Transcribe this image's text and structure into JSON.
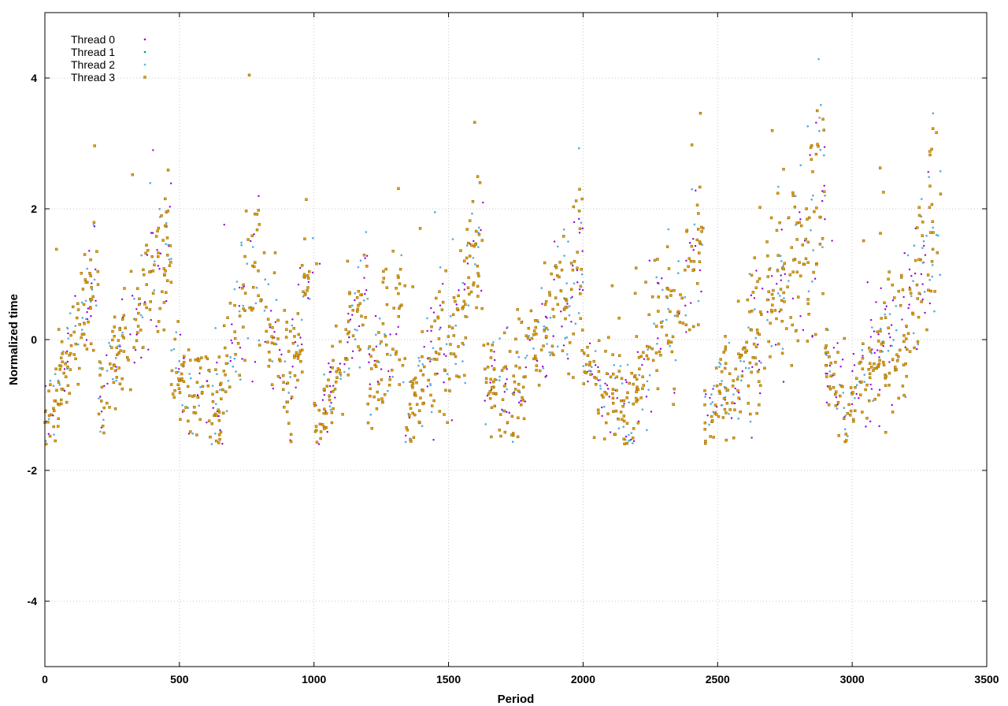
{
  "chart_data": {
    "type": "scatter",
    "title": "",
    "xlabel": "Period",
    "ylabel": "Normalized time",
    "xlim": [
      0,
      3500
    ],
    "ylim": [
      -5,
      5
    ],
    "xticks": [
      0,
      500,
      1000,
      1500,
      2000,
      2500,
      3000,
      3500
    ],
    "yticks": [
      -4,
      -2,
      0,
      2,
      4
    ],
    "grid": true,
    "legend": "top-left",
    "x_max_period": 3330,
    "phase_segments": [
      {
        "x0": 0,
        "x1": 200,
        "y_start": -1.3,
        "y_end": 1.0,
        "spread": 0.45
      },
      {
        "x0": 200,
        "x1": 470,
        "y_start": -0.9,
        "y_end": 1.6,
        "spread": 0.55
      },
      {
        "x0": 470,
        "x1": 660,
        "y_start": -0.4,
        "y_end": -1.1,
        "spread": 0.5
      },
      {
        "x0": 660,
        "x1": 800,
        "y_start": -0.6,
        "y_end": 1.5,
        "spread": 0.6
      },
      {
        "x0": 800,
        "x1": 920,
        "y_start": 0.6,
        "y_end": -0.8,
        "spread": 0.5
      },
      {
        "x0": 920,
        "x1": 1000,
        "y_start": -0.2,
        "y_end": 1.1,
        "spread": 0.5
      },
      {
        "x0": 1000,
        "x1": 1120,
        "y_start": -1.3,
        "y_end": -0.3,
        "spread": 0.35
      },
      {
        "x0": 1120,
        "x1": 1200,
        "y_start": -0.2,
        "y_end": 1.2,
        "spread": 0.45
      },
      {
        "x0": 1200,
        "x1": 1340,
        "y_start": -0.7,
        "y_end": 0.5,
        "spread": 0.6
      },
      {
        "x0": 1340,
        "x1": 1480,
        "y_start": -1.3,
        "y_end": 0.4,
        "spread": 0.55
      },
      {
        "x0": 1480,
        "x1": 1630,
        "y_start": -0.6,
        "y_end": 1.6,
        "spread": 0.6
      },
      {
        "x0": 1630,
        "x1": 1760,
        "y_start": -0.5,
        "y_end": -1.1,
        "spread": 0.5
      },
      {
        "x0": 1760,
        "x1": 2000,
        "y_start": -0.6,
        "y_end": 1.3,
        "spread": 0.55
      },
      {
        "x0": 2000,
        "x1": 2190,
        "y_start": -0.3,
        "y_end": -1.2,
        "spread": 0.45
      },
      {
        "x0": 2190,
        "x1": 2330,
        "y_start": -0.7,
        "y_end": 0.6,
        "spread": 0.55
      },
      {
        "x0": 2330,
        "x1": 2450,
        "y_start": -0.2,
        "y_end": 2.0,
        "spread": 0.65
      },
      {
        "x0": 2450,
        "x1": 2680,
        "y_start": -1.2,
        "y_end": 0.2,
        "spread": 0.55
      },
      {
        "x0": 2680,
        "x1": 2900,
        "y_start": 0.3,
        "y_end": 2.2,
        "spread": 0.8
      },
      {
        "x0": 2900,
        "x1": 3000,
        "y_start": -0.3,
        "y_end": -1.2,
        "spread": 0.45
      },
      {
        "x0": 3000,
        "x1": 3200,
        "y_start": -0.7,
        "y_end": 0.1,
        "spread": 0.55
      },
      {
        "x0": 3200,
        "x1": 3330,
        "y_start": 0.2,
        "y_end": 2.2,
        "spread": 0.7
      }
    ],
    "series": [
      {
        "name": "Thread 0",
        "color": "#9400d3",
        "marker": "dot",
        "n_points": 1500
      },
      {
        "name": "Thread 1",
        "color": "#009e73",
        "marker": "dot",
        "n_points": 1500
      },
      {
        "name": "Thread 2",
        "color": "#56b4e9",
        "marker": "dot",
        "n_points": 1500
      },
      {
        "name": "Thread 3",
        "color": "#e69f00",
        "marker": "square",
        "n_points": 1300
      }
    ]
  }
}
